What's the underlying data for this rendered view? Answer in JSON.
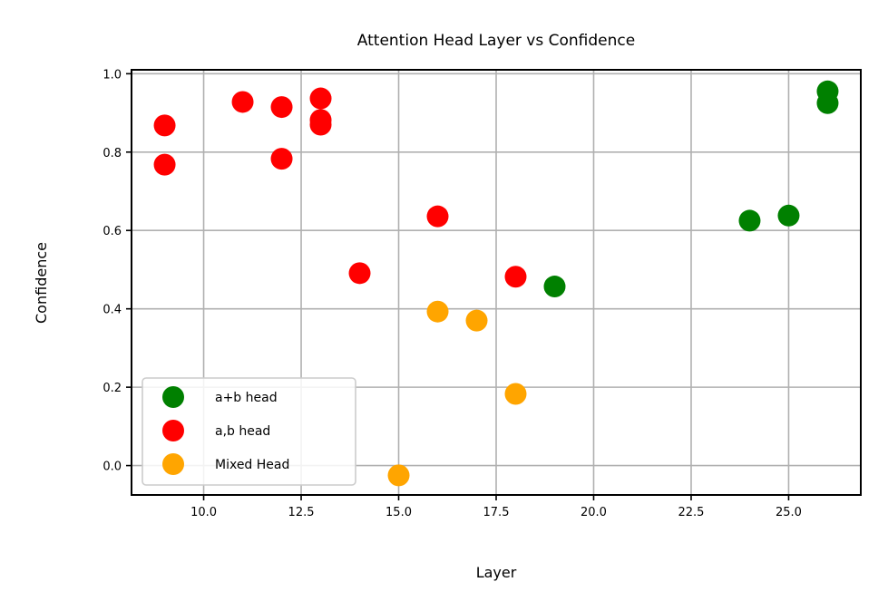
{
  "chart_data": {
    "type": "scatter",
    "title": "Attention Head Layer vs Confidence",
    "xlabel": "Layer",
    "ylabel": "Confidence",
    "xlim": [
      8.15,
      26.85
    ],
    "ylim": [
      -0.075,
      1.01
    ],
    "xticks": [
      10.0,
      12.5,
      15.0,
      17.5,
      20.0,
      22.5,
      25.0
    ],
    "xtick_labels": [
      "10.0",
      "12.5",
      "15.0",
      "17.5",
      "20.0",
      "22.5",
      "25.0"
    ],
    "yticks": [
      0.0,
      0.2,
      0.4,
      0.6,
      0.8,
      1.0
    ],
    "ytick_labels": [
      "0.0",
      "0.2",
      "0.4",
      "0.6",
      "0.8",
      "1.0"
    ],
    "grid": true,
    "legend_position": "lower-left",
    "series": [
      {
        "name": "a+b head",
        "color": "#008000",
        "points": [
          [
            19,
            0.457
          ],
          [
            24,
            0.625
          ],
          [
            25,
            0.638
          ],
          [
            26,
            0.955
          ],
          [
            26,
            0.925
          ]
        ]
      },
      {
        "name": "a,b head",
        "color": "#ff0000",
        "points": [
          [
            9,
            0.868
          ],
          [
            9,
            0.768
          ],
          [
            11,
            0.928
          ],
          [
            12,
            0.915
          ],
          [
            12,
            0.783
          ],
          [
            13,
            0.937
          ],
          [
            13,
            0.882
          ],
          [
            13,
            0.87
          ],
          [
            14,
            0.491
          ],
          [
            16,
            0.636
          ],
          [
            18,
            0.482
          ]
        ]
      },
      {
        "name": "Mixed Head",
        "color": "#ffa500",
        "points": [
          [
            15,
            -0.025
          ],
          [
            16,
            0.393
          ],
          [
            17,
            0.37
          ],
          [
            18,
            0.183
          ]
        ]
      }
    ]
  }
}
